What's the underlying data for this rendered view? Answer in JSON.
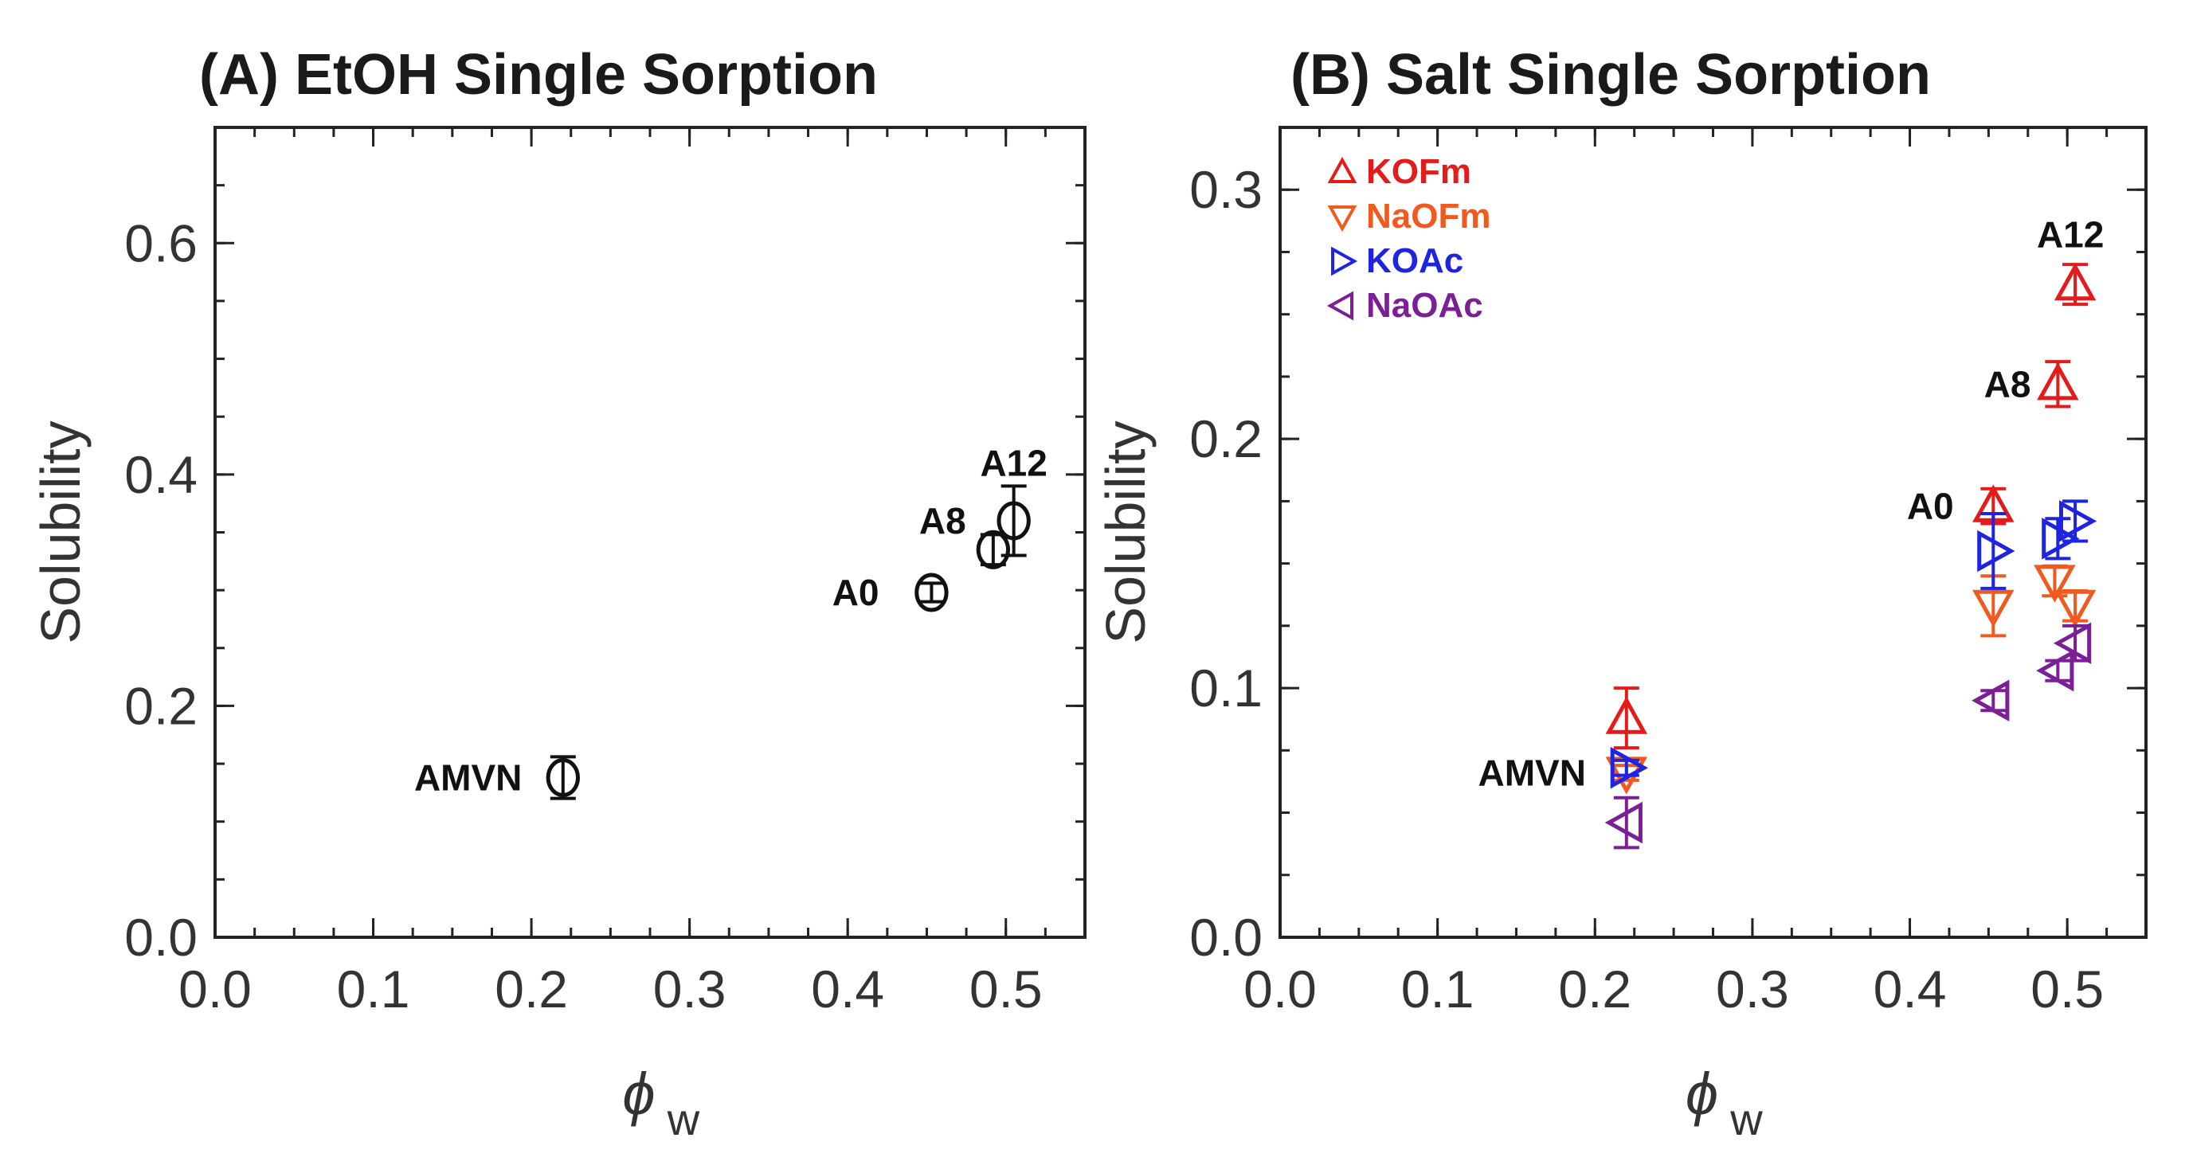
{
  "chart_data": [
    {
      "type": "scatter",
      "title": "(A) EtOH Single Sorption",
      "xlabel": "ϕ",
      "xlabel_sub": "w",
      "ylabel": "Solubility",
      "xlim": [
        0.0,
        0.55
      ],
      "ylim": [
        0.0,
        0.7
      ],
      "xticks": [
        0.0,
        0.1,
        0.2,
        0.3,
        0.4,
        0.5
      ],
      "xtick_labels": [
        "0.0",
        "0.1",
        "0.2",
        "0.3",
        "0.4",
        "0.5"
      ],
      "yticks": [
        0.0,
        0.2,
        0.4,
        0.6
      ],
      "ytick_labels": [
        "0.0",
        "0.2",
        "0.4",
        "0.6"
      ],
      "grid": false,
      "series": [
        {
          "name": "EtOH",
          "marker": "circle",
          "color": "#111111",
          "points": [
            {
              "x": 0.22,
              "y": 0.138,
              "err": 0.018
            },
            {
              "x": 0.453,
              "y": 0.298,
              "err": 0.008
            },
            {
              "x": 0.492,
              "y": 0.335,
              "err": 0.013
            },
            {
              "x": 0.505,
              "y": 0.36,
              "err": 0.03
            }
          ]
        }
      ],
      "annotations": [
        {
          "text": "AMVN",
          "x": 0.16,
          "y": 0.138,
          "anchor": "middle"
        },
        {
          "text": "A0",
          "x": 0.405,
          "y": 0.298,
          "anchor": "middle"
        },
        {
          "text": "A8",
          "x": 0.46,
          "y": 0.36,
          "anchor": "middle"
        },
        {
          "text": "A12",
          "x": 0.505,
          "y": 0.41,
          "anchor": "middle"
        }
      ]
    },
    {
      "type": "scatter",
      "title": "(B) Salt Single Sorption",
      "xlabel": "ϕ",
      "xlabel_sub": "w",
      "ylabel": "Solubility",
      "xlim": [
        0.0,
        0.55
      ],
      "ylim": [
        0.0,
        0.325
      ],
      "xticks": [
        0.0,
        0.1,
        0.2,
        0.3,
        0.4,
        0.5
      ],
      "xtick_labels": [
        "0.0",
        "0.1",
        "0.2",
        "0.3",
        "0.4",
        "0.5"
      ],
      "yticks": [
        0.0,
        0.1,
        0.2,
        0.3
      ],
      "ytick_labels": [
        "0.0",
        "0.1",
        "0.2",
        "0.3"
      ],
      "grid": false,
      "legend_position": "top-left",
      "series": [
        {
          "name": "KOFm",
          "marker": "triangle-up",
          "color": "#e31b1b",
          "points": [
            {
              "x": 0.22,
              "y": 0.088,
              "err": 0.012
            },
            {
              "x": 0.453,
              "y": 0.173,
              "err": 0.007
            },
            {
              "x": 0.494,
              "y": 0.222,
              "err": 0.009
            },
            {
              "x": 0.505,
              "y": 0.262,
              "err": 0.008
            }
          ]
        },
        {
          "name": "NaOFm",
          "marker": "triangle-down",
          "color": "#f05a1e",
          "points": [
            {
              "x": 0.22,
              "y": 0.066,
              "err": 0.003
            },
            {
              "x": 0.453,
              "y": 0.133,
              "err": 0.012
            },
            {
              "x": 0.492,
              "y": 0.143,
              "err": 0.006
            },
            {
              "x": 0.505,
              "y": 0.133,
              "err": 0.006
            }
          ]
        },
        {
          "name": "KOAc",
          "marker": "triangle-right",
          "color": "#1e24e0",
          "points": [
            {
              "x": 0.22,
              "y": 0.068,
              "err": 0.003
            },
            {
              "x": 0.453,
              "y": 0.155,
              "err": 0.015
            },
            {
              "x": 0.494,
              "y": 0.16,
              "err": 0.008
            },
            {
              "x": 0.505,
              "y": 0.167,
              "err": 0.008
            }
          ]
        },
        {
          "name": "NaOAc",
          "marker": "triangle-left",
          "color": "#7b1f96",
          "points": [
            {
              "x": 0.22,
              "y": 0.046,
              "err": 0.01
            },
            {
              "x": 0.453,
              "y": 0.095,
              "err": 0.004
            },
            {
              "x": 0.494,
              "y": 0.107,
              "err": 0.004
            },
            {
              "x": 0.505,
              "y": 0.118,
              "err": 0.007
            }
          ]
        }
      ],
      "annotations": [
        {
          "text": "AMVN",
          "x": 0.16,
          "y": 0.066,
          "anchor": "middle"
        },
        {
          "text": "A0",
          "x": 0.413,
          "y": 0.173,
          "anchor": "middle"
        },
        {
          "text": "A8",
          "x": 0.462,
          "y": 0.222,
          "anchor": "middle"
        },
        {
          "text": "A12",
          "x": 0.502,
          "y": 0.282,
          "anchor": "middle"
        }
      ]
    }
  ]
}
